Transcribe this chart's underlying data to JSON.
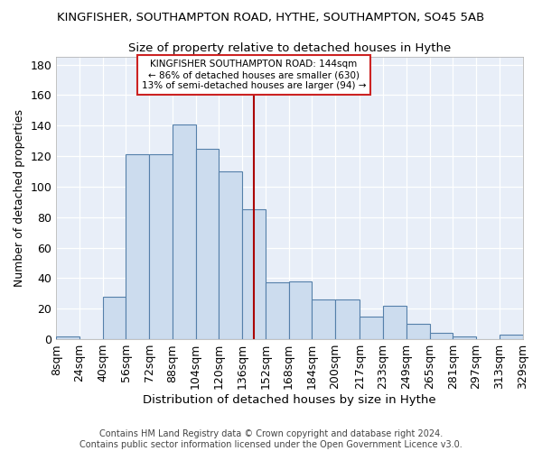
{
  "title1": "KINGFISHER, SOUTHAMPTON ROAD, HYTHE, SOUTHAMPTON, SO45 5AB",
  "title2": "Size of property relative to detached houses in Hythe",
  "xlabel": "Distribution of detached houses by size in Hythe",
  "ylabel": "Number of detached properties",
  "bar_counts": [
    2,
    0,
    28,
    121,
    121,
    141,
    125,
    110,
    85,
    37,
    38,
    26,
    26,
    15,
    22,
    10,
    4,
    2,
    0,
    3
  ],
  "bin_edges": [
    8,
    24,
    40,
    56,
    72,
    88,
    104,
    120,
    136,
    152,
    168,
    184,
    200,
    217,
    233,
    249,
    265,
    281,
    297,
    313,
    329
  ],
  "bar_color": "#ccdcee",
  "bar_edge_color": "#5580aa",
  "property_size": 144,
  "vline_color": "#aa0000",
  "annotation_text": "KINGFISHER SOUTHAMPTON ROAD: 144sqm\n← 86% of detached houses are smaller (630)\n13% of semi-detached houses are larger (94) →",
  "annotation_box_color": "#ffffff",
  "annotation_box_edge": "#cc2222",
  "ylim": [
    0,
    185
  ],
  "yticks": [
    0,
    20,
    40,
    60,
    80,
    100,
    120,
    140,
    160,
    180
  ],
  "bg_color": "#ffffff",
  "plot_bg_color": "#e8eef8",
  "footer": "Contains HM Land Registry data © Crown copyright and database right 2024.\nContains public sector information licensed under the Open Government Licence v3.0.",
  "title1_fontsize": 9.5,
  "title2_fontsize": 9.5,
  "xlabel_fontsize": 9.5,
  "ylabel_fontsize": 9,
  "footer_fontsize": 7,
  "tick_labelsize": 9
}
